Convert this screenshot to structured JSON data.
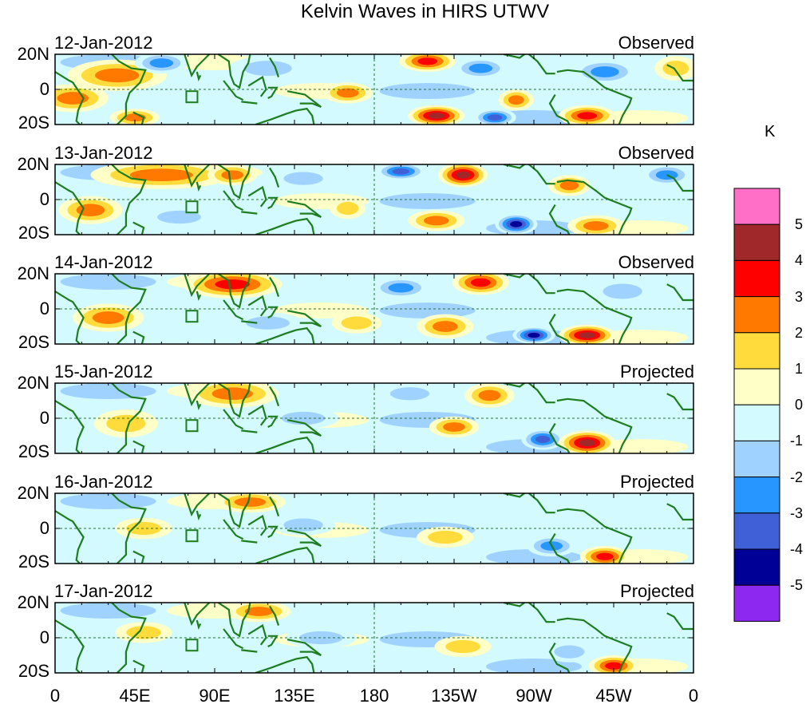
{
  "chart_data": {
    "type": "heatmap",
    "title": "Kelvin Waves in HIRS UTWV",
    "unit_label": "K",
    "x_ticks": [
      "0",
      "45E",
      "90E",
      "135E",
      "180",
      "135W",
      "90W",
      "45W",
      "0"
    ],
    "y_ticks": [
      "20N",
      "0",
      "20S"
    ],
    "xlim": [
      0,
      360
    ],
    "ylim": [
      -20,
      20
    ],
    "colorbar": {
      "labels": [
        "5",
        "4",
        "3",
        "2",
        "1",
        "0",
        "-1",
        "-2",
        "-3",
        "-4",
        "-5"
      ],
      "colors": [
        "#ff6ec7",
        "#a0282a",
        "#ff0000",
        "#ff7800",
        "#ffdc3c",
        "#ffffc8",
        "#d2faff",
        "#a0d2ff",
        "#2896ff",
        "#4060d8",
        "#000096",
        "#8c28f0"
      ]
    },
    "panels": [
      {
        "date": "12-Jan-2012",
        "status": "Observed",
        "features": [
          {
            "lon": 35,
            "lat": 8,
            "value": 3,
            "rx": 28,
            "ry": 9
          },
          {
            "lon": 10,
            "lat": -5,
            "value": 3,
            "rx": 20,
            "ry": 8
          },
          {
            "lon": 60,
            "lat": 15,
            "value": -3,
            "rx": 15,
            "ry": 6
          },
          {
            "lon": 45,
            "lat": -16,
            "value": 3,
            "rx": 14,
            "ry": 5
          },
          {
            "lon": 120,
            "lat": 12,
            "value": -2,
            "rx": 22,
            "ry": 7
          },
          {
            "lon": 165,
            "lat": -2,
            "value": 3,
            "rx": 14,
            "ry": 6
          },
          {
            "lon": 210,
            "lat": 16,
            "value": 4,
            "rx": 16,
            "ry": 6
          },
          {
            "lon": 215,
            "lat": -15,
            "value": 5,
            "rx": 16,
            "ry": 6
          },
          {
            "lon": 240,
            "lat": 12,
            "value": -3,
            "rx": 15,
            "ry": 6
          },
          {
            "lon": 260,
            "lat": -6,
            "value": 3,
            "rx": 10,
            "ry": 6
          },
          {
            "lon": 248,
            "lat": -16,
            "value": -4,
            "rx": 12,
            "ry": 5
          },
          {
            "lon": 300,
            "lat": -15,
            "value": 4,
            "rx": 16,
            "ry": 6
          },
          {
            "lon": 310,
            "lat": 10,
            "value": -3,
            "rx": 18,
            "ry": 7
          },
          {
            "lon": 350,
            "lat": 12,
            "value": 2,
            "rx": 12,
            "ry": 7
          }
        ]
      },
      {
        "date": "13-Jan-2012",
        "status": "Observed",
        "features": [
          {
            "lon": 60,
            "lat": 14,
            "value": 3,
            "rx": 40,
            "ry": 8
          },
          {
            "lon": 20,
            "lat": -6,
            "value": 3,
            "rx": 18,
            "ry": 8
          },
          {
            "lon": 100,
            "lat": 14,
            "value": 3,
            "rx": 14,
            "ry": 6
          },
          {
            "lon": 70,
            "lat": -10,
            "value": -2,
            "rx": 20,
            "ry": 6
          },
          {
            "lon": 140,
            "lat": 12,
            "value": -2,
            "rx": 18,
            "ry": 6
          },
          {
            "lon": 165,
            "lat": -5,
            "value": 2,
            "rx": 10,
            "ry": 6
          },
          {
            "lon": 195,
            "lat": 16,
            "value": -4,
            "rx": 14,
            "ry": 5
          },
          {
            "lon": 230,
            "lat": 14,
            "value": 5,
            "rx": 14,
            "ry": 7
          },
          {
            "lon": 215,
            "lat": -12,
            "value": 3,
            "rx": 16,
            "ry": 6
          },
          {
            "lon": 260,
            "lat": -14,
            "value": -5,
            "rx": 12,
            "ry": 6
          },
          {
            "lon": 290,
            "lat": 8,
            "value": 3,
            "rx": 12,
            "ry": 6
          },
          {
            "lon": 305,
            "lat": -15,
            "value": 3,
            "rx": 16,
            "ry": 6
          },
          {
            "lon": 345,
            "lat": 14,
            "value": -3,
            "rx": 14,
            "ry": 6
          }
        ]
      },
      {
        "date": "14-Jan-2012",
        "status": "Observed",
        "features": [
          {
            "lon": 100,
            "lat": 14,
            "value": 4,
            "rx": 28,
            "ry": 8
          },
          {
            "lon": 30,
            "lat": -5,
            "value": 3,
            "rx": 20,
            "ry": 8
          },
          {
            "lon": 120,
            "lat": -8,
            "value": -2,
            "rx": 20,
            "ry": 6
          },
          {
            "lon": 170,
            "lat": -8,
            "value": 2,
            "rx": 14,
            "ry": 6
          },
          {
            "lon": 195,
            "lat": 12,
            "value": -3,
            "rx": 16,
            "ry": 6
          },
          {
            "lon": 240,
            "lat": 15,
            "value": 4,
            "rx": 16,
            "ry": 7
          },
          {
            "lon": 220,
            "lat": -10,
            "value": 3,
            "rx": 16,
            "ry": 7
          },
          {
            "lon": 270,
            "lat": -15,
            "value": -5,
            "rx": 12,
            "ry": 5
          },
          {
            "lon": 300,
            "lat": -15,
            "value": 5,
            "rx": 16,
            "ry": 6
          },
          {
            "lon": 320,
            "lat": 10,
            "value": -2,
            "rx": 18,
            "ry": 7
          }
        ]
      },
      {
        "date": "15-Jan-2012",
        "status": "Projected",
        "features": [
          {
            "lon": 100,
            "lat": 14,
            "value": 3,
            "rx": 26,
            "ry": 8
          },
          {
            "lon": 40,
            "lat": -3,
            "value": 2,
            "rx": 18,
            "ry": 8
          },
          {
            "lon": 140,
            "lat": 0,
            "value": -2,
            "rx": 20,
            "ry": 6
          },
          {
            "lon": 200,
            "lat": 14,
            "value": -2,
            "rx": 18,
            "ry": 6
          },
          {
            "lon": 245,
            "lat": 13,
            "value": 3,
            "rx": 14,
            "ry": 7
          },
          {
            "lon": 225,
            "lat": -5,
            "value": 3,
            "rx": 14,
            "ry": 6
          },
          {
            "lon": 275,
            "lat": -12,
            "value": -4,
            "rx": 12,
            "ry": 6
          },
          {
            "lon": 300,
            "lat": -14,
            "value": 5,
            "rx": 16,
            "ry": 7
          }
        ]
      },
      {
        "date": "16-Jan-2012",
        "status": "Projected",
        "features": [
          {
            "lon": 110,
            "lat": 15,
            "value": 3,
            "rx": 20,
            "ry": 6
          },
          {
            "lon": 50,
            "lat": 0,
            "value": 2,
            "rx": 16,
            "ry": 6
          },
          {
            "lon": 140,
            "lat": 2,
            "value": -2,
            "rx": 18,
            "ry": 6
          },
          {
            "lon": 220,
            "lat": -5,
            "value": 2,
            "rx": 16,
            "ry": 6
          },
          {
            "lon": 280,
            "lat": -10,
            "value": -3,
            "rx": 14,
            "ry": 6
          },
          {
            "lon": 310,
            "lat": -16,
            "value": 4,
            "rx": 14,
            "ry": 6
          }
        ]
      },
      {
        "date": "17-Jan-2012",
        "status": "Projected",
        "features": [
          {
            "lon": 115,
            "lat": 15,
            "value": 3,
            "rx": 18,
            "ry": 6
          },
          {
            "lon": 50,
            "lat": 3,
            "value": 2,
            "rx": 16,
            "ry": 6
          },
          {
            "lon": 150,
            "lat": 0,
            "value": -2,
            "rx": 20,
            "ry": 6
          },
          {
            "lon": 230,
            "lat": -5,
            "value": 2,
            "rx": 16,
            "ry": 6
          },
          {
            "lon": 290,
            "lat": -8,
            "value": -2,
            "rx": 14,
            "ry": 6
          },
          {
            "lon": 315,
            "lat": -16,
            "value": 4,
            "rx": 14,
            "ry": 6
          }
        ]
      }
    ]
  }
}
